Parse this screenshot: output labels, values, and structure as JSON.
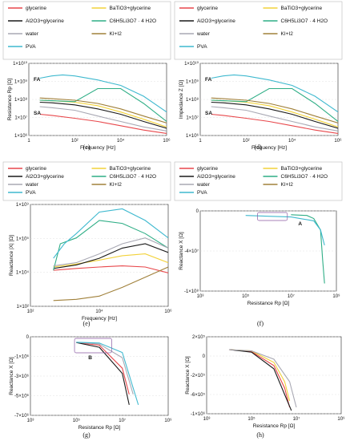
{
  "legend_colors": {
    "glycerine": "#e8474b",
    "BaTiO3+glycerine": "#f2d23a",
    "Al2O3+glycerine": "#1a1a1a",
    "C6H5Li3O7 · 4 H2O": "#2fae86",
    "water": "#a9a9b4",
    "KI+I2": "#a0803a",
    "PVA": "#3fb9cf"
  },
  "chart_data": [
    {
      "panel": "c",
      "type": "line",
      "caption": "(c)",
      "xlabel": "Frequency  [Hz]",
      "ylabel": "Resistance  Rp  [Ω]",
      "x_scale": "log",
      "y_scale": "log",
      "xlim": [
        1,
        1000000
      ],
      "ylim": [
        1000000,
        10000000000
      ],
      "x_ticks": [
        "1",
        "10²",
        "10⁴",
        "10⁶"
      ],
      "y_ticks": [
        "1×10¹⁰",
        "1×10⁹",
        "1×10⁸",
        "1×10⁷",
        "1×10⁶"
      ],
      "legend": [
        "glycerine",
        "BaTiO3+glycerine",
        "Al2O3+glycerine",
        "C6H5Li3O7 · 4 H2O",
        "water",
        "KI+I2",
        "PVA"
      ],
      "annotations": [
        "FA",
        "SA"
      ],
      "series": [
        {
          "name": "glycerine",
          "x": [
            3,
            10,
            100,
            1000,
            10000,
            100000,
            1000000
          ],
          "y": [
            15000000,
            13000000,
            9000000,
            6000000,
            3500000,
            2000000,
            1300000
          ]
        },
        {
          "name": "BaTiO3+glycerine",
          "x": [
            3,
            10,
            100,
            1000,
            10000,
            100000,
            1000000
          ],
          "y": [
            90000000,
            85000000,
            70000000,
            45000000,
            20000000,
            8000000,
            3000000
          ]
        },
        {
          "name": "Al2O3+glycerine",
          "x": [
            3,
            10,
            100,
            1000,
            10000,
            100000,
            1000000
          ],
          "y": [
            70000000,
            65000000,
            50000000,
            30000000,
            15000000,
            6000000,
            2500000
          ]
        },
        {
          "name": "C6H5Li3O7 · 4 H2O",
          "x": [
            3,
            10,
            100,
            1000,
            10000,
            100000,
            1000000
          ],
          "y": [
            90000000,
            85000000,
            75000000,
            400000000,
            400000000,
            60000000,
            6000000
          ]
        },
        {
          "name": "water",
          "x": [
            3,
            10,
            100,
            1000,
            10000,
            100000,
            1000000
          ],
          "y": [
            40000000,
            35000000,
            25000000,
            12000000,
            6000000,
            3000000,
            1800000
          ]
        },
        {
          "name": "KI+I2",
          "x": [
            3,
            10,
            100,
            1000,
            10000,
            100000,
            1000000
          ],
          "y": [
            120000000,
            110000000,
            90000000,
            60000000,
            30000000,
            12000000,
            5000000
          ]
        },
        {
          "name": "PVA",
          "x": [
            3,
            10,
            30,
            100,
            1000,
            10000,
            100000,
            1000000
          ],
          "y": [
            1500000000,
            2000000000,
            2300000000,
            2000000000,
            1200000000,
            600000000,
            150000000,
            20000000
          ]
        }
      ]
    },
    {
      "panel": "d",
      "type": "line",
      "caption": "(d)",
      "xlabel": "Frequency  [Hz]",
      "ylabel": "Impedance  Z  [Ω]",
      "x_scale": "log",
      "y_scale": "log",
      "xlim": [
        1,
        1000000
      ],
      "ylim": [
        1000000,
        10000000000
      ],
      "x_ticks": [
        "1",
        "10²",
        "10⁴",
        "10⁶"
      ],
      "y_ticks": [
        "1×10¹⁰",
        "1×10⁹",
        "1×10⁸",
        "1×10⁷",
        "1×10⁶"
      ],
      "legend": [
        "glycerine",
        "BaTiO3+glycerine",
        "Al2O3+glycerine",
        "C6H5Li3O7 · 4 H2O",
        "water",
        "KI+I2",
        "PVA"
      ],
      "annotations": [
        "FA",
        "SA"
      ],
      "series": [
        {
          "name": "glycerine",
          "x": [
            3,
            10,
            100,
            1000,
            10000,
            100000,
            1000000
          ],
          "y": [
            15000000,
            13000000,
            9000000,
            6000000,
            3500000,
            2000000,
            1300000
          ]
        },
        {
          "name": "BaTiO3+glycerine",
          "x": [
            3,
            10,
            100,
            1000,
            10000,
            100000,
            1000000
          ],
          "y": [
            90000000,
            85000000,
            70000000,
            45000000,
            20000000,
            8000000,
            3000000
          ]
        },
        {
          "name": "Al2O3+glycerine",
          "x": [
            3,
            10,
            100,
            1000,
            10000,
            100000,
            1000000
          ],
          "y": [
            70000000,
            65000000,
            50000000,
            30000000,
            15000000,
            6000000,
            2500000
          ]
        },
        {
          "name": "C6H5Li3O7 · 4 H2O",
          "x": [
            3,
            10,
            100,
            1000,
            10000,
            100000,
            1000000
          ],
          "y": [
            90000000,
            85000000,
            75000000,
            400000000,
            400000000,
            60000000,
            6000000
          ]
        },
        {
          "name": "water",
          "x": [
            3,
            10,
            100,
            1000,
            10000,
            100000,
            1000000
          ],
          "y": [
            40000000,
            35000000,
            25000000,
            12000000,
            6000000,
            3000000,
            1800000
          ]
        },
        {
          "name": "KI+I2",
          "x": [
            3,
            10,
            100,
            1000,
            10000,
            100000,
            1000000
          ],
          "y": [
            120000000,
            110000000,
            90000000,
            60000000,
            30000000,
            12000000,
            5000000
          ]
        },
        {
          "name": "PVA",
          "x": [
            3,
            10,
            30,
            100,
            1000,
            10000,
            100000,
            1000000
          ],
          "y": [
            1500000000,
            2000000000,
            2300000000,
            2000000000,
            1200000000,
            600000000,
            150000000,
            20000000
          ]
        }
      ]
    },
    {
      "panel": "e",
      "type": "line",
      "caption": "(e)",
      "xlabel": "Frequency  [Hz]",
      "ylabel": "Reactance  |X|  [Ω]",
      "x_scale": "log",
      "y_scale": "log",
      "xlim": [
        1,
        1000000
      ],
      "ylim": [
        100,
        1000000000
      ],
      "x_ticks": [
        "10²",
        "10⁴",
        "10⁶"
      ],
      "y_ticks": [
        "1×10⁹",
        "1×10⁵",
        "1×10⁴",
        "1×10²"
      ],
      "legend": [
        "glycerine",
        "BaTiO3+glycerine",
        "Al2O3+glycerine",
        "C6H5Li3O7 · 4 H2O",
        "water",
        "KI+I2",
        "PVA"
      ],
      "series": [
        {
          "name": "glycerine",
          "x": [
            10,
            100,
            1000,
            10000,
            100000,
            1000000
          ],
          "y": [
            30000,
            40000,
            50000,
            60000,
            50000,
            20000
          ]
        },
        {
          "name": "BaTiO3+glycerine",
          "x": [
            10,
            100,
            1000,
            10000,
            100000,
            1000000
          ],
          "y": [
            50000,
            80000,
            150000,
            300000,
            400000,
            100000
          ]
        },
        {
          "name": "Al2O3+glycerine",
          "x": [
            10,
            100,
            1000,
            10000,
            100000,
            1000000
          ],
          "y": [
            40000,
            70000,
            200000,
            1000000,
            2000000,
            500000
          ]
        },
        {
          "name": "C6H5Li3O7 · 4 H2O",
          "x": [
            10,
            20,
            100,
            1000,
            10000,
            100000,
            1000000
          ],
          "y": [
            30000,
            2000000,
            5000000,
            80000000,
            50000000,
            10000000,
            1000000
          ]
        },
        {
          "name": "water",
          "x": [
            10,
            100,
            1000,
            10000,
            100000,
            1000000
          ],
          "y": [
            60000,
            100000,
            400000,
            2000000,
            5000000,
            1000000
          ]
        },
        {
          "name": "KI+I2",
          "x": [
            10,
            100,
            1000,
            10000,
            100000,
            1000000
          ],
          "y": [
            250,
            300,
            500,
            2000,
            10000,
            50000
          ]
        },
        {
          "name": "PVA",
          "x": [
            10,
            30,
            100,
            1000,
            10000,
            100000,
            1000000
          ],
          "y": [
            200000,
            2000000,
            10000000,
            300000000,
            500000000,
            80000000,
            5000000
          ]
        }
      ]
    },
    {
      "panel": "f",
      "type": "line",
      "caption": "(f)",
      "xlabel": "Resistance  Rp  [Ω]",
      "ylabel": "Reactance  X  [Ω]",
      "x_scale": "log",
      "y_scale": "linear",
      "xlim": [
        1000,
        1000000000
      ],
      "ylim": [
        -100000000,
        5000000
      ],
      "x_ticks": [
        "10³",
        "10⁵",
        "10⁷",
        "10⁹"
      ],
      "y_ticks": [
        "0",
        "-4×10⁷",
        "-1×10⁸"
      ],
      "legend": [
        "glycerine",
        "BaTiO3+glycerine",
        "Al2O3+glycerine",
        "C6H5Li3O7 · 4 H2O",
        "water",
        "KI+I2",
        "PVA"
      ],
      "annotations": [
        "A"
      ],
      "series": [
        {
          "name": "C6H5Li3O7 · 4 H2O",
          "x": [
            10000000,
            50000000,
            100000000,
            200000000,
            250000000,
            300000000
          ],
          "y": [
            0,
            -1000000,
            -5000000,
            -20000000,
            -60000000,
            -90000000
          ]
        },
        {
          "name": "PVA",
          "x": [
            100000,
            1000000,
            10000000,
            100000000,
            200000000,
            300000000
          ],
          "y": [
            -1000000,
            -2000000,
            -3000000,
            -8000000,
            -20000000,
            -40000000
          ]
        }
      ]
    },
    {
      "panel": "g",
      "type": "line",
      "caption": "(g)",
      "xlabel": "Resistance  Rp  [Ω]",
      "ylabel": "Reactance  X  [Ω]",
      "x_scale": "log",
      "y_scale": "linear",
      "xlim": [
        1000,
        1000000000
      ],
      "ylim": [
        -7000000,
        500000
      ],
      "x_ticks": [
        "10³",
        "10⁵",
        "10⁷",
        "10⁹"
      ],
      "y_ticks": [
        "0",
        "-1×10⁶",
        "-3×10⁶",
        "-5×10⁶",
        "-7×10⁶"
      ],
      "legend": [],
      "annotations": [
        "B"
      ],
      "series": [
        {
          "name": "glycerine",
          "x": [
            100000,
            1000000,
            10000000,
            20000000
          ],
          "y": [
            -50000,
            -300000,
            -2500000,
            -5000000
          ]
        },
        {
          "name": "Al2O3+glycerine",
          "x": [
            100000,
            1000000,
            10000000,
            20000000
          ],
          "y": [
            -50000,
            -500000,
            -3000000,
            -6000000
          ]
        },
        {
          "name": "water",
          "x": [
            100000,
            1000000,
            10000000,
            30000000
          ],
          "y": [
            -30000,
            -200000,
            -1500000,
            -5000000
          ]
        },
        {
          "name": "PVA",
          "x": [
            100000,
            1000000,
            10000000,
            50000000
          ],
          "y": [
            -20000,
            -100000,
            -1000000,
            -6000000
          ]
        }
      ]
    },
    {
      "panel": "h",
      "type": "line",
      "caption": "(h)",
      "xlabel": "Resistance  Rp  [Ω]",
      "ylabel": "Reactance  X  [Ω]",
      "x_scale": "log",
      "y_scale": "linear",
      "xlim": [
        1000,
        1000000000
      ],
      "ylim": [
        -1000000,
        200000
      ],
      "x_ticks": [
        "10³",
        "10⁵",
        "10⁷",
        "10⁹"
      ],
      "y_ticks": [
        "2×10⁵",
        "0",
        "-2×10⁵",
        "-6×10⁵",
        "-1×10⁶"
      ],
      "legend": [],
      "series": [
        {
          "name": "glycerine",
          "x": [
            10000,
            100000,
            1000000,
            3000000,
            5000000
          ],
          "y": [
            0,
            -30000,
            -250000,
            -600000,
            -900000
          ]
        },
        {
          "name": "BaTiO3+glycerine",
          "x": [
            10000,
            100000,
            1000000,
            3000000,
            5000000
          ],
          "y": [
            0,
            -20000,
            -200000,
            -500000,
            -800000
          ]
        },
        {
          "name": "Al2O3+glycerine",
          "x": [
            10000,
            100000,
            1000000,
            3000000,
            6000000
          ],
          "y": [
            0,
            -40000,
            -300000,
            -700000,
            -950000
          ]
        },
        {
          "name": "water",
          "x": [
            10000,
            100000,
            1000000,
            5000000,
            10000000
          ],
          "y": [
            0,
            -20000,
            -150000,
            -500000,
            -900000
          ]
        }
      ]
    }
  ]
}
